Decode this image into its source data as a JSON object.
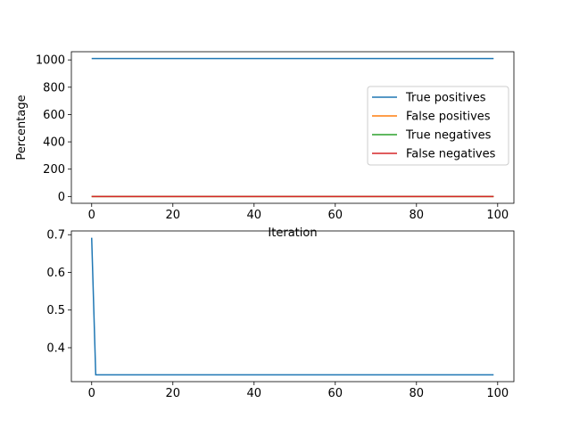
{
  "chart_data": [
    {
      "type": "line",
      "xlabel": "Iteration",
      "ylabel": "Percentage",
      "xlim": [
        -5,
        104
      ],
      "ylim": [
        -50,
        1060
      ],
      "xticks": [
        0,
        20,
        40,
        60,
        80,
        100
      ],
      "yticks": [
        0,
        200,
        400,
        600,
        800,
        1000
      ],
      "legend_position": "right",
      "series": [
        {
          "name": "True positives",
          "color": "#1f77b4",
          "x": [
            0,
            99
          ],
          "y": [
            1010,
            1010
          ]
        },
        {
          "name": "False positives",
          "color": "#ff7f0e",
          "x": [
            0,
            99
          ],
          "y": [
            0,
            0
          ]
        },
        {
          "name": "True negatives",
          "color": "#2ca02c",
          "x": [
            0,
            99
          ],
          "y": [
            0,
            0
          ]
        },
        {
          "name": "False negatives",
          "color": "#d62728",
          "x": [
            0,
            99
          ],
          "y": [
            0,
            0
          ]
        }
      ]
    },
    {
      "type": "line",
      "xlabel": "",
      "ylabel": "",
      "xlim": [
        -5,
        104
      ],
      "ylim": [
        0.31,
        0.71
      ],
      "xticks": [
        0,
        20,
        40,
        60,
        80,
        100
      ],
      "yticks": [
        0.4,
        0.5,
        0.6,
        0.7
      ],
      "series": [
        {
          "color": "#1f77b4",
          "x": [
            0,
            1,
            99
          ],
          "y": [
            0.692,
            0.328,
            0.328
          ]
        }
      ]
    }
  ]
}
